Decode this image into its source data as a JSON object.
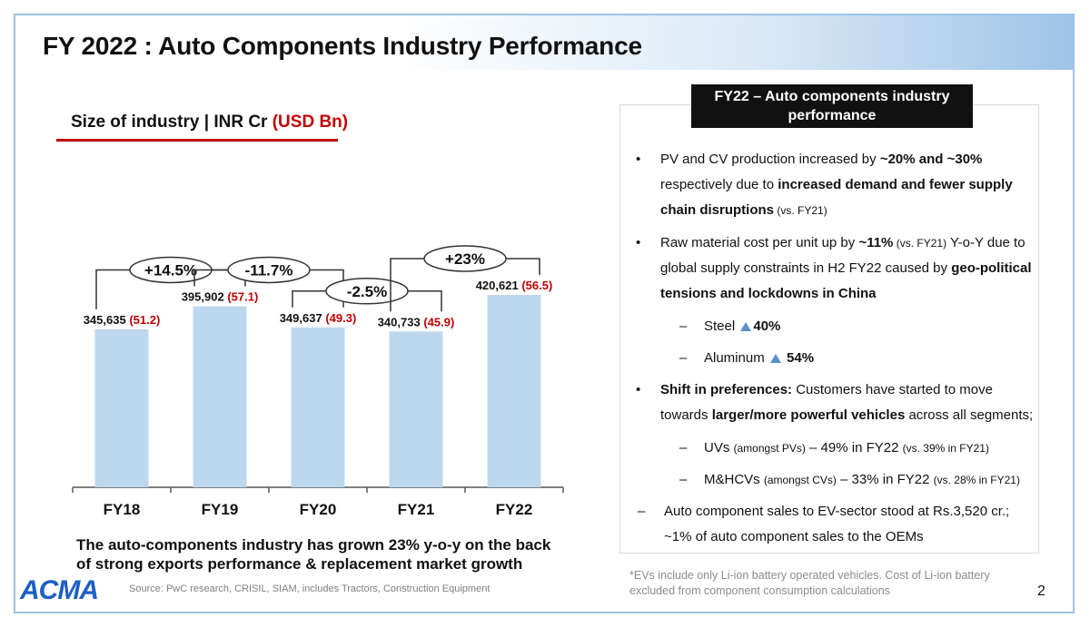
{
  "slide": {
    "title": "FY 2022 : Auto Components Industry Performance",
    "subtitle_main": "Size of industry | INR Cr ",
    "subtitle_red": "(USD Bn)",
    "summary": "The auto-components industry has grown 23% y-o-y on the back of strong exports performance & replacement market growth",
    "logo": "ACMA",
    "source": "Source: PwC research, CRISIL, SIAM, includes Tractors, Construction Equipment",
    "footnote": "*EVs include only Li-ion battery operated vehicles. Cost of Li-ion battery excluded from component consumption calculations",
    "page_number": "2"
  },
  "panel": {
    "header": "FY22 – Auto components industry performance",
    "bullet_marker": "•",
    "dash_marker": "–",
    "b1_t1": "PV and CV production increased by ",
    "b1_t2": "~20% and ~30%",
    "b1_t3": " respectively due to ",
    "b1_t4": "increased demand and fewer supply chain disruptions",
    "b1_t5": " (vs. FY21)",
    "b2_t1": "Raw material cost per unit up by ",
    "b2_t2": "~11%",
    "b2_t3": " (vs. FY21)",
    "b2_t4": " Y-o-Y due to global supply constraints in H2 FY22 caused by ",
    "b2_t5": "geo-political tensions and lockdowns in China",
    "s1_label": "Steel ",
    "s1_value": "40%",
    "s2_label": "Aluminum ",
    "s2_value": "54%",
    "b3_t1": "Shift in preferences:",
    "b3_t2": " Customers have started to move towards ",
    "b3_t3": "larger/more powerful vehicles",
    "b3_t4": " across all segments;",
    "s3_t1": "UVs ",
    "s3_t2": "(amongst PVs)",
    "s3_t3": " – 49% in FY22 ",
    "s3_t4": "(vs. 39% in FY21)",
    "s4_t1": "M&HCVs ",
    "s4_t2": "(amongst CVs)",
    "s4_t3": " – 33% in FY22 ",
    "s4_t4": "(vs. 28% in FY21)",
    "d1": "Auto component sales to EV-sector stood at Rs.3,520 cr.; ~1% of auto component sales to the OEMs"
  },
  "chart_data": {
    "type": "bar",
    "title": "Size of industry | INR Cr (USD Bn)",
    "categories": [
      "FY18",
      "FY19",
      "FY20",
      "FY21",
      "FY22"
    ],
    "series": [
      {
        "name": "INR Cr",
        "values": [
          345635,
          395902,
          349637,
          340733,
          420621
        ]
      },
      {
        "name": "USD Bn",
        "values": [
          51.2,
          57.1,
          49.3,
          45.9,
          56.5
        ]
      }
    ],
    "value_labels": [
      "345,635",
      "395,902",
      "349,637",
      "340,733",
      "420,621"
    ],
    "usd_labels": [
      "(51.2)",
      "(57.1)",
      "(49.3)",
      "(45.9)",
      "(56.5)"
    ],
    "growth": [
      "+14.5%",
      "-11.7%",
      "-2.5%",
      "+23%"
    ],
    "ylim": [
      0,
      420621
    ],
    "xlabel": "",
    "ylabel": "",
    "colors": {
      "bar": "#bdd7ee",
      "usd_text": "#c00000"
    }
  }
}
